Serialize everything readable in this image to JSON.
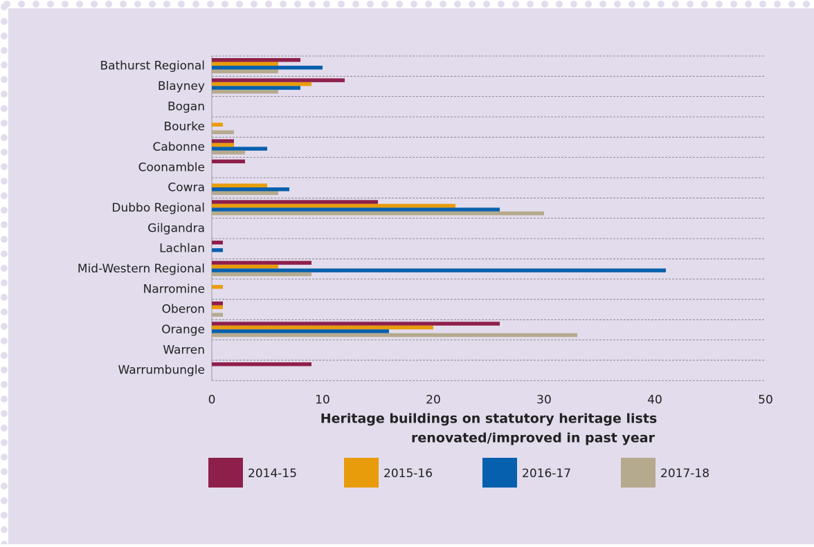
{
  "chart_data": {
    "type": "bar",
    "orientation": "horizontal",
    "categories": [
      "Bathurst Regional",
      "Blayney",
      "Bogan",
      "Bourke",
      "Cabonne",
      "Coonamble",
      "Cowra",
      "Dubbo Regional",
      "Gilgandra",
      "Lachlan",
      "Mid-Western Regional",
      "Narromine",
      "Oberon",
      "Orange",
      "Warren",
      "Warrumbungle"
    ],
    "series": [
      {
        "name": "2014-15",
        "color": "#8e1f4b",
        "values": [
          8,
          12,
          0,
          0,
          2,
          3,
          0,
          15,
          0,
          1,
          9,
          0,
          1,
          26,
          0,
          9
        ]
      },
      {
        "name": "2015-16",
        "color": "#e89c0c",
        "values": [
          6,
          9,
          0,
          1,
          2,
          0,
          5,
          22,
          0,
          0,
          6,
          1,
          1,
          20,
          0,
          0
        ]
      },
      {
        "name": "2016-17",
        "color": "#0660ad",
        "values": [
          10,
          8,
          0,
          0,
          5,
          0,
          7,
          26,
          0,
          1,
          41,
          0,
          0,
          16,
          0,
          0
        ]
      },
      {
        "name": "2017-18",
        "color": "#b5aa8e",
        "values": [
          6,
          6,
          0,
          2,
          3,
          0,
          6,
          30,
          0,
          0,
          9,
          0,
          1,
          33,
          0,
          0
        ]
      }
    ],
    "xlabel": [
      "Heritage buildings on statutory heritage lists",
      "renovated/improved in past year"
    ],
    "xlim": [
      0,
      50
    ],
    "xticks": [
      0,
      10,
      20,
      30,
      40,
      50
    ],
    "grid": true,
    "legend": "bottom"
  }
}
